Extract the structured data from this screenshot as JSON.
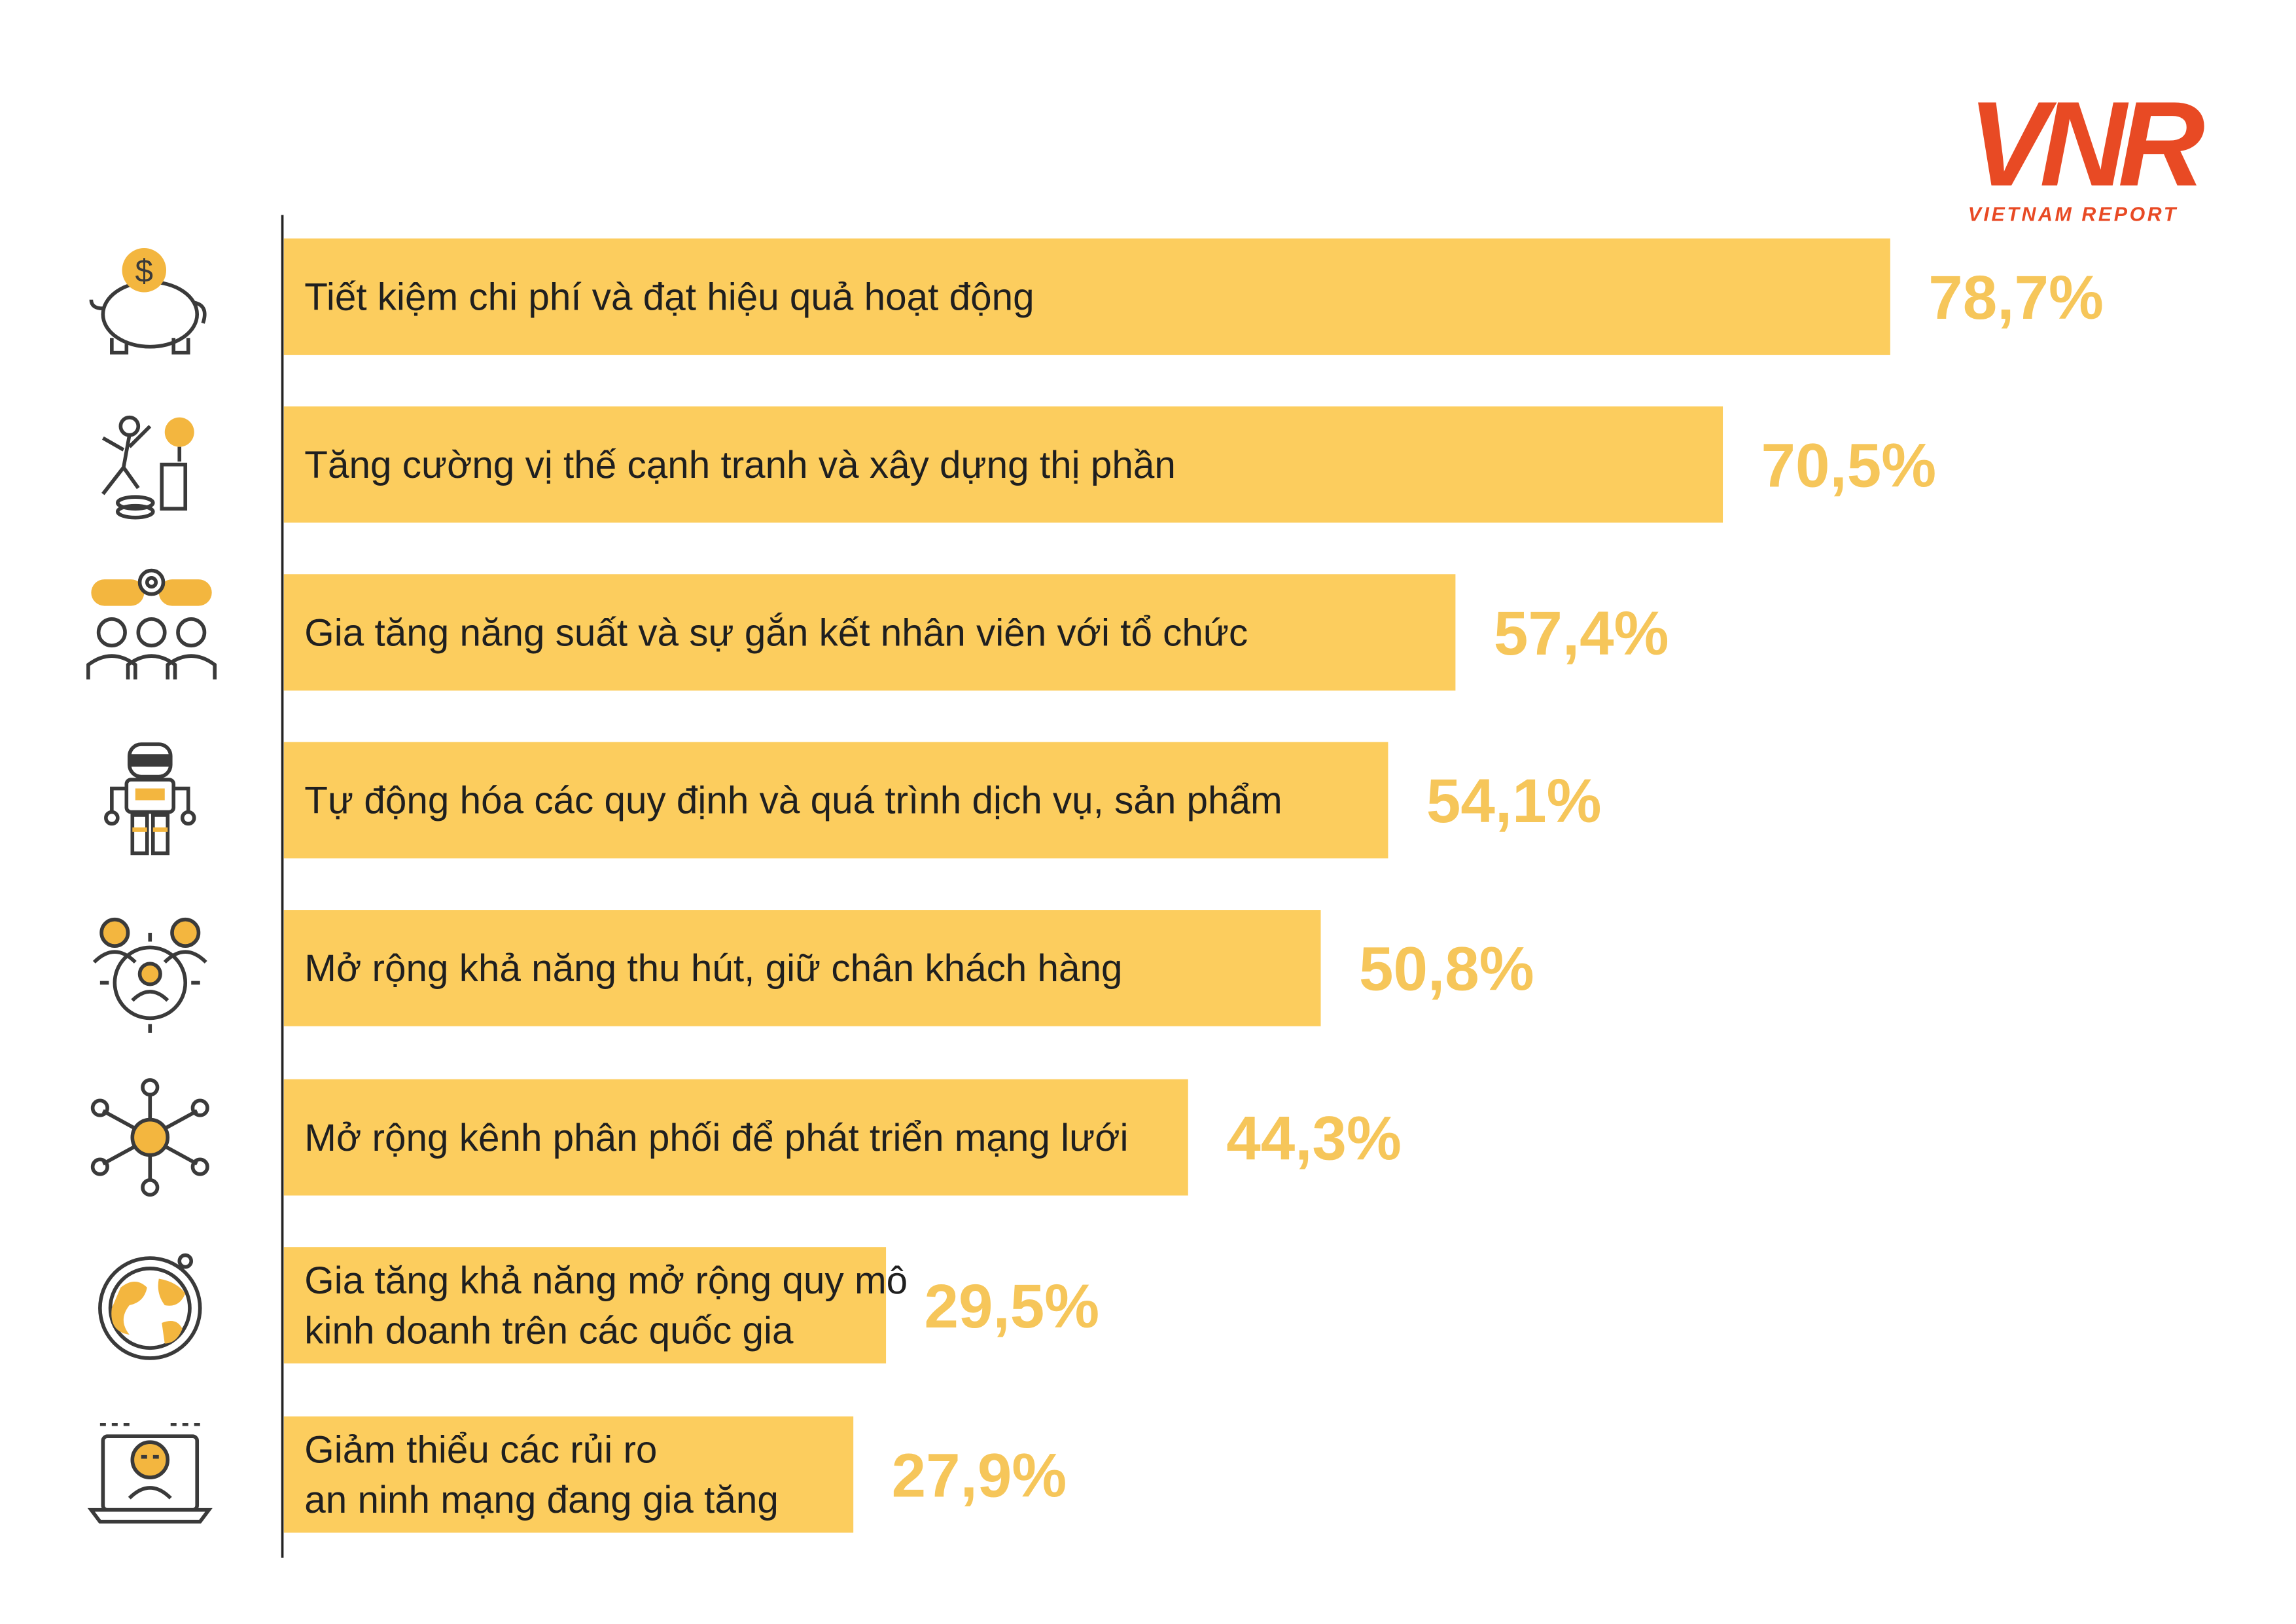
{
  "brand": {
    "logo_text": "VNR",
    "name": "VIETNAM REPORT",
    "color": "#e84a24"
  },
  "colors": {
    "bar": "#fccd5e",
    "value": "#f6c65a",
    "icon_stroke": "#3a3a3a",
    "icon_accent": "#f3b63f",
    "axis": "#222222"
  },
  "chart_data": {
    "type": "bar",
    "orientation": "horizontal",
    "title": "",
    "xlabel": "",
    "ylabel": "",
    "xlim": [
      0,
      100
    ],
    "unit": "%",
    "categories": [
      [
        "Tiết kiệm chi phí và đạt hiệu quả hoạt động"
      ],
      [
        "Tăng cường vị thế cạnh tranh và xây dựng thị phần"
      ],
      [
        "Gia tăng năng suất và sự gắn kết nhân viên với tổ chức"
      ],
      [
        "Tự động hóa các quy định và quá trình dịch vụ, sản phẩm"
      ],
      [
        "Mở rộng khả năng thu hút, giữ chân khách hàng"
      ],
      [
        "Mở rộng kênh phân phối để phát triển mạng lưới"
      ],
      [
        "Gia tăng khả năng mở rộng quy mô",
        "kinh doanh trên các quốc gia"
      ],
      [
        "Giảm thiểu các rủi ro",
        "an ninh mạng đang gia tăng"
      ]
    ],
    "values": [
      78.7,
      70.5,
      57.4,
      54.1,
      50.8,
      44.3,
      29.5,
      27.9
    ],
    "value_labels": [
      "78,7%",
      "70,5%",
      "57,4%",
      "54,1%",
      "50,8%",
      "44,3%",
      "29,5%",
      "27,9%"
    ],
    "icons": [
      "piggy-bank-icon",
      "competition-icon",
      "team-productivity-icon",
      "robot-automation-icon",
      "customer-target-icon",
      "distribution-network-icon",
      "globe-icon",
      "cyber-security-icon"
    ],
    "grid": false,
    "legend": "none"
  }
}
